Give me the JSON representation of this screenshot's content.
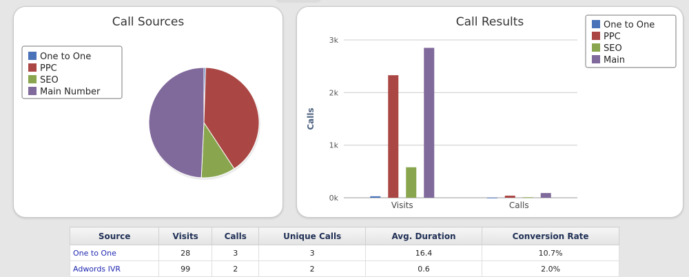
{
  "colors": {
    "one_to_one": "#4a72b8",
    "ppc": "#aa4643",
    "seo": "#89a54e",
    "main": "#80699b"
  },
  "chart_data": [
    {
      "type": "pie",
      "title": "Call Sources",
      "labels": [
        "One to One",
        "PPC",
        "SEO",
        "Main Number"
      ],
      "values": [
        28,
        2330,
        580,
        2850
      ],
      "legend_position": "top-left"
    },
    {
      "type": "bar",
      "title": "Call Results",
      "categories": [
        "Visits",
        "Calls"
      ],
      "ylabel": "Calls",
      "ylim": [
        0,
        3000
      ],
      "yticks": [
        "0k",
        "1k",
        "2k",
        "3k"
      ],
      "grid": true,
      "legend_position": "top-right",
      "series": [
        {
          "name": "One to One",
          "values": [
            28,
            3
          ]
        },
        {
          "name": "PPC",
          "values": [
            2330,
            40
          ]
        },
        {
          "name": "SEO",
          "values": [
            580,
            10
          ]
        },
        {
          "name": "Main",
          "values": [
            2850,
            90
          ]
        }
      ]
    }
  ],
  "table": {
    "headers": [
      "Source",
      "Visits",
      "Calls",
      "Unique Calls",
      "Avg. Duration",
      "Conversion Rate"
    ],
    "rows": [
      [
        "One to One",
        "28",
        "3",
        "3",
        "16.4",
        "10.7%"
      ],
      [
        "Adwords IVR",
        "99",
        "2",
        "2",
        "0.6",
        "2.0%"
      ]
    ]
  }
}
